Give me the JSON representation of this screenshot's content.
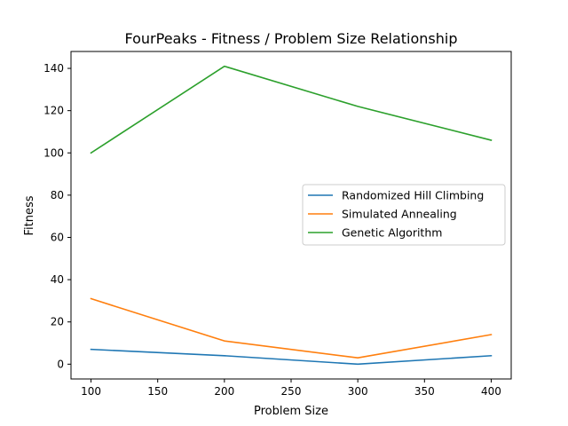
{
  "chart_data": {
    "type": "line",
    "title": "FourPeaks - Fitness / Problem Size Relationship",
    "xlabel": "Problem Size",
    "ylabel": "Fitness",
    "x": [
      100,
      200,
      300,
      400
    ],
    "xlim": [
      85,
      415
    ],
    "ylim": [
      -7,
      148
    ],
    "xticks": [
      100,
      150,
      200,
      250,
      300,
      350,
      400
    ],
    "yticks": [
      0,
      20,
      40,
      60,
      80,
      100,
      120,
      140
    ],
    "grid": false,
    "legend_position": "center-right",
    "series": [
      {
        "name": "Randomized Hill Climbing",
        "color": "#1f77b4",
        "values": [
          7,
          4,
          0,
          4
        ]
      },
      {
        "name": "Simulated Annealing",
        "color": "#ff7f0e",
        "values": [
          31,
          11,
          3,
          14
        ]
      },
      {
        "name": "Genetic Algorithm",
        "color": "#2ca02c",
        "values": [
          100,
          141,
          122,
          106
        ]
      }
    ]
  }
}
